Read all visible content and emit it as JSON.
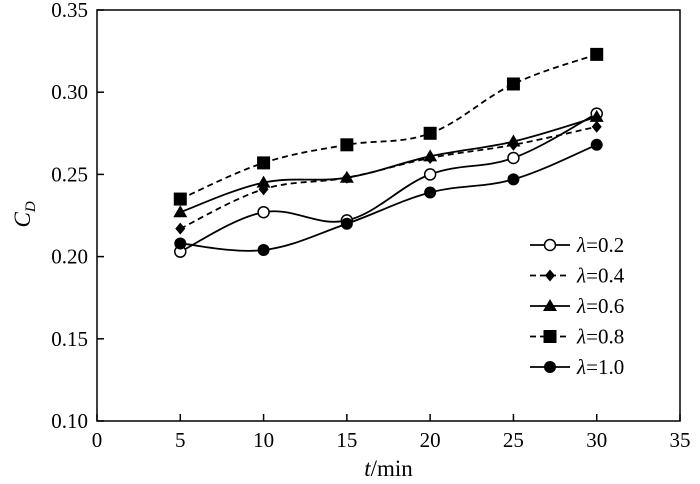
{
  "chart_data": {
    "type": "line",
    "title": "",
    "xlabel_italic": "t",
    "xlabel_unit": "/min",
    "ylabel_main": "C",
    "ylabel_sub": "D",
    "xlim": [
      0,
      35
    ],
    "ylim": [
      0.1,
      0.35
    ],
    "xticks": [
      0,
      5,
      10,
      15,
      20,
      25,
      30,
      35
    ],
    "yticks": [
      0.1,
      0.15,
      0.2,
      0.25,
      0.3,
      0.35
    ],
    "xtick_labels": [
      "0",
      "5",
      "10",
      "15",
      "20",
      "25",
      "30",
      "35"
    ],
    "ytick_labels": [
      "0.10",
      "0.15",
      "0.20",
      "0.25",
      "0.30",
      "0.35"
    ],
    "grid": false,
    "legend_position": "right",
    "x": [
      5,
      10,
      15,
      20,
      25,
      30
    ],
    "series": [
      {
        "name": "λ=0.2",
        "symbol": "λ",
        "value_text": "=0.2",
        "marker": "open-circle",
        "dash": "solid",
        "values": [
          0.203,
          0.227,
          0.222,
          0.25,
          0.26,
          0.287
        ]
      },
      {
        "name": "λ=0.4",
        "symbol": "λ",
        "value_text": "=0.4",
        "marker": "diamond",
        "dash": "dashed",
        "values": [
          0.217,
          0.241,
          0.248,
          0.26,
          0.268,
          0.279
        ]
      },
      {
        "name": "λ=0.6",
        "symbol": "λ",
        "value_text": "=0.6",
        "marker": "triangle",
        "dash": "solid",
        "values": [
          0.227,
          0.245,
          0.248,
          0.261,
          0.27,
          0.285
        ]
      },
      {
        "name": "λ=0.8",
        "symbol": "λ",
        "value_text": "=0.8",
        "marker": "square",
        "dash": "dashed",
        "values": [
          0.235,
          0.257,
          0.268,
          0.275,
          0.305,
          0.323
        ]
      },
      {
        "name": "λ=1.0",
        "symbol": "λ",
        "value_text": "=1.0",
        "marker": "filled-circle",
        "dash": "solid",
        "values": [
          0.208,
          0.204,
          0.22,
          0.239,
          0.247,
          0.268
        ]
      }
    ]
  }
}
